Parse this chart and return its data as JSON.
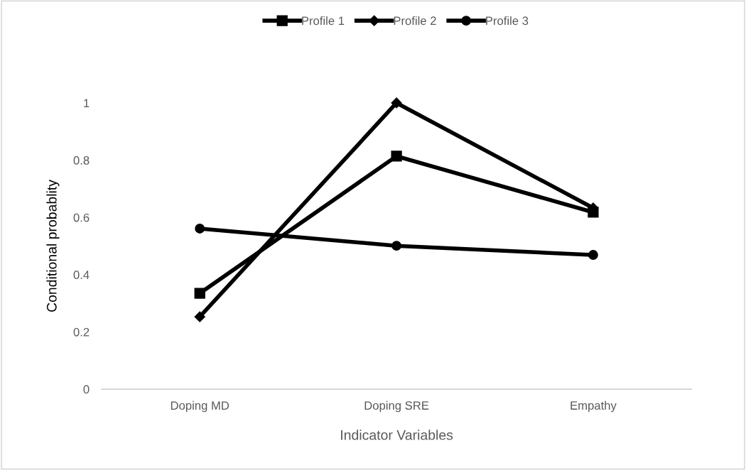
{
  "chart_data": {
    "type": "line",
    "xlabel": "Indicator Variables",
    "ylabel": "Conditional probablity",
    "categories": [
      "Doping MD",
      "Doping SRE",
      "Empathy"
    ],
    "series": [
      {
        "name": "Profile 1",
        "color": "#000000",
        "marker": "square",
        "values": [
          0.335,
          0.814,
          0.618
        ]
      },
      {
        "name": "Profile 2",
        "color": "#000000",
        "marker": "diamond",
        "values": [
          0.253,
          1.0,
          0.633
        ]
      },
      {
        "name": "Profile 3",
        "color": "#000000",
        "marker": "circle",
        "values": [
          0.561,
          0.501,
          0.469
        ]
      }
    ],
    "ylim": [
      0,
      1
    ],
    "yticks": [
      0,
      0.2,
      0.4,
      0.6,
      0.8,
      1
    ],
    "grid": false,
    "legend": "top",
    "line_style": "solid"
  }
}
